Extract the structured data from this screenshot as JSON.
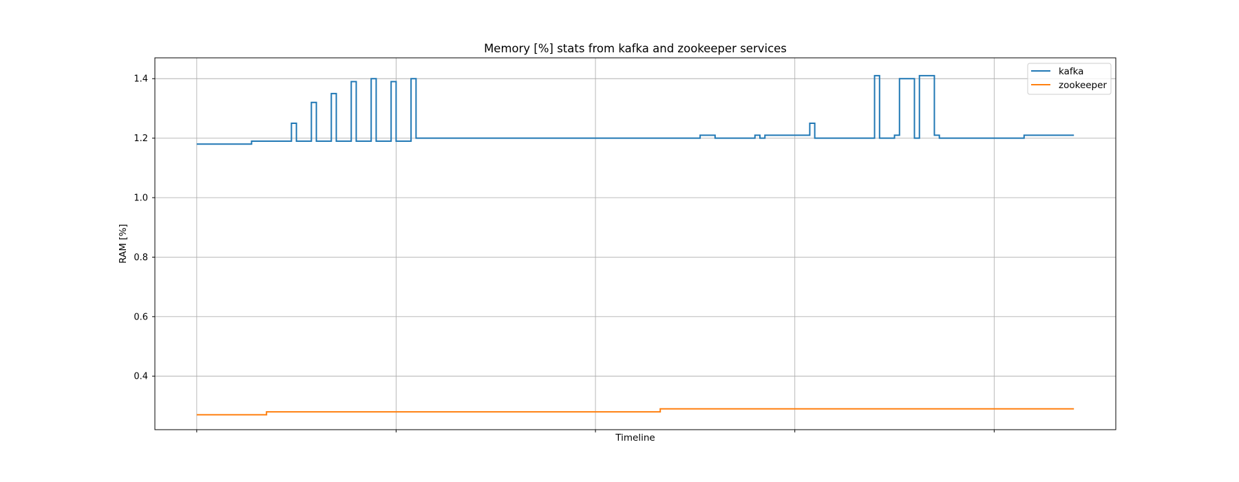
{
  "chart_data": {
    "type": "line",
    "title": "Memory [%] stats from kafka and zookeeper services",
    "xlabel": "Timeline",
    "ylabel": "RAM [%]",
    "ylim": [
      0.22,
      1.47
    ],
    "xlim": [
      -8.4,
      184.4
    ],
    "yticks": [
      0.4,
      0.6,
      0.8,
      1.0,
      1.2,
      1.4
    ],
    "ytick_labels": [
      "0.4",
      "0.6",
      "0.8",
      "1.0",
      "1.2",
      "1.4"
    ],
    "xticks": [
      0,
      40,
      80,
      120,
      160
    ],
    "xtick_labels": [
      "",
      "",
      "",
      "",
      ""
    ],
    "grid": true,
    "step": "post",
    "legend_position": "upper right",
    "colors": {
      "kafka": "#1f77b4",
      "zookeeper": "#ff7f0e"
    },
    "series": [
      {
        "name": "kafka",
        "x": [
          0,
          11,
          19,
          20,
          23,
          24,
          27,
          28,
          31,
          32,
          35,
          36,
          39,
          40,
          43,
          44,
          45,
          51,
          101,
          104,
          112,
          113,
          114,
          123,
          124,
          136,
          137,
          140,
          141,
          144,
          145,
          148,
          149,
          150,
          152,
          153,
          156,
          157,
          158,
          166,
          176
        ],
        "y": [
          1.18,
          1.19,
          1.25,
          1.19,
          1.32,
          1.19,
          1.35,
          1.19,
          1.39,
          1.19,
          1.4,
          1.19,
          1.39,
          1.19,
          1.4,
          1.2,
          1.2,
          1.2,
          1.21,
          1.2,
          1.21,
          1.2,
          1.21,
          1.25,
          1.2,
          1.41,
          1.2,
          1.21,
          1.4,
          1.2,
          1.41,
          1.21,
          1.2,
          1.2,
          1.2,
          1.2,
          1.2,
          1.2,
          1.2,
          1.21,
          1.21
        ]
      },
      {
        "name": "zookeeper",
        "x": [
          0,
          14,
          93,
          176
        ],
        "y": [
          0.27,
          0.28,
          0.29,
          0.29
        ]
      }
    ]
  }
}
